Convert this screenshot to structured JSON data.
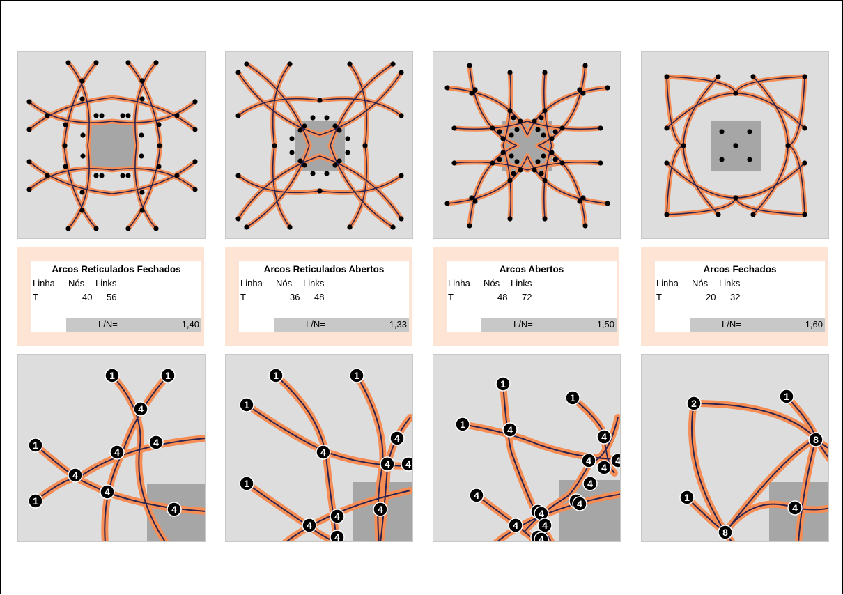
{
  "colors": {
    "background": "#ffffff",
    "panel": "#dddddd",
    "center_square": "#a6a6a6",
    "arc_outer": "#f58d55",
    "arc_core": "#2b2350",
    "node": "#000000",
    "info_frame": "#fde4d4",
    "ratio_bar": "#c8c8c8"
  },
  "columns": [
    {
      "id": "reticulados-fechados",
      "summary": {
        "title": "Arcos Reticulados Fechados",
        "col_linha": "Linha",
        "col_nos": "Nós",
        "col_links": "Links",
        "row_label": "T",
        "nodes": "40",
        "links": "56",
        "ratio_label": "L/N=",
        "ratio_value": "1,40"
      },
      "detail_node_labels": [
        "1",
        "1",
        "4",
        "4",
        "4",
        "1",
        "4",
        "1",
        "4",
        "4"
      ]
    },
    {
      "id": "reticulados-abertos",
      "summary": {
        "title": "Arcos Reticulados Abertos",
        "col_linha": "Linha",
        "col_nos": "Nós",
        "col_links": "Links",
        "row_label": "T",
        "nodes": "36",
        "links": "48",
        "ratio_label": "L/N=",
        "ratio_value": "1,33"
      },
      "detail_node_labels": [
        "1",
        "1",
        "1",
        "4",
        "4",
        "4",
        "4",
        "1",
        "4",
        "4",
        "4",
        "4"
      ]
    },
    {
      "id": "abertos",
      "summary": {
        "title": "Arcos Abertos",
        "col_linha": "Linha",
        "col_nos": "Nós",
        "col_links": "Links",
        "row_label": "T",
        "nodes": "48",
        "links": "72",
        "ratio_label": "L/N=",
        "ratio_value": "1,50"
      },
      "detail_node_labels": [
        "1",
        "1",
        "1",
        "4",
        "4",
        "4",
        "4",
        "4",
        "4",
        "4",
        "4",
        "1",
        "4",
        "4",
        "4",
        "4",
        "4",
        "4"
      ]
    },
    {
      "id": "fechados",
      "summary": {
        "title": "Arcos Fechados",
        "col_linha": "Linha",
        "col_nos": "Nós",
        "col_links": "Links",
        "row_label": "T",
        "nodes": "20",
        "links": "32",
        "ratio_label": "L/N=",
        "ratio_value": "1,60"
      },
      "detail_node_labels": [
        "2",
        "1",
        "8",
        "1",
        "4",
        "8"
      ]
    }
  ]
}
